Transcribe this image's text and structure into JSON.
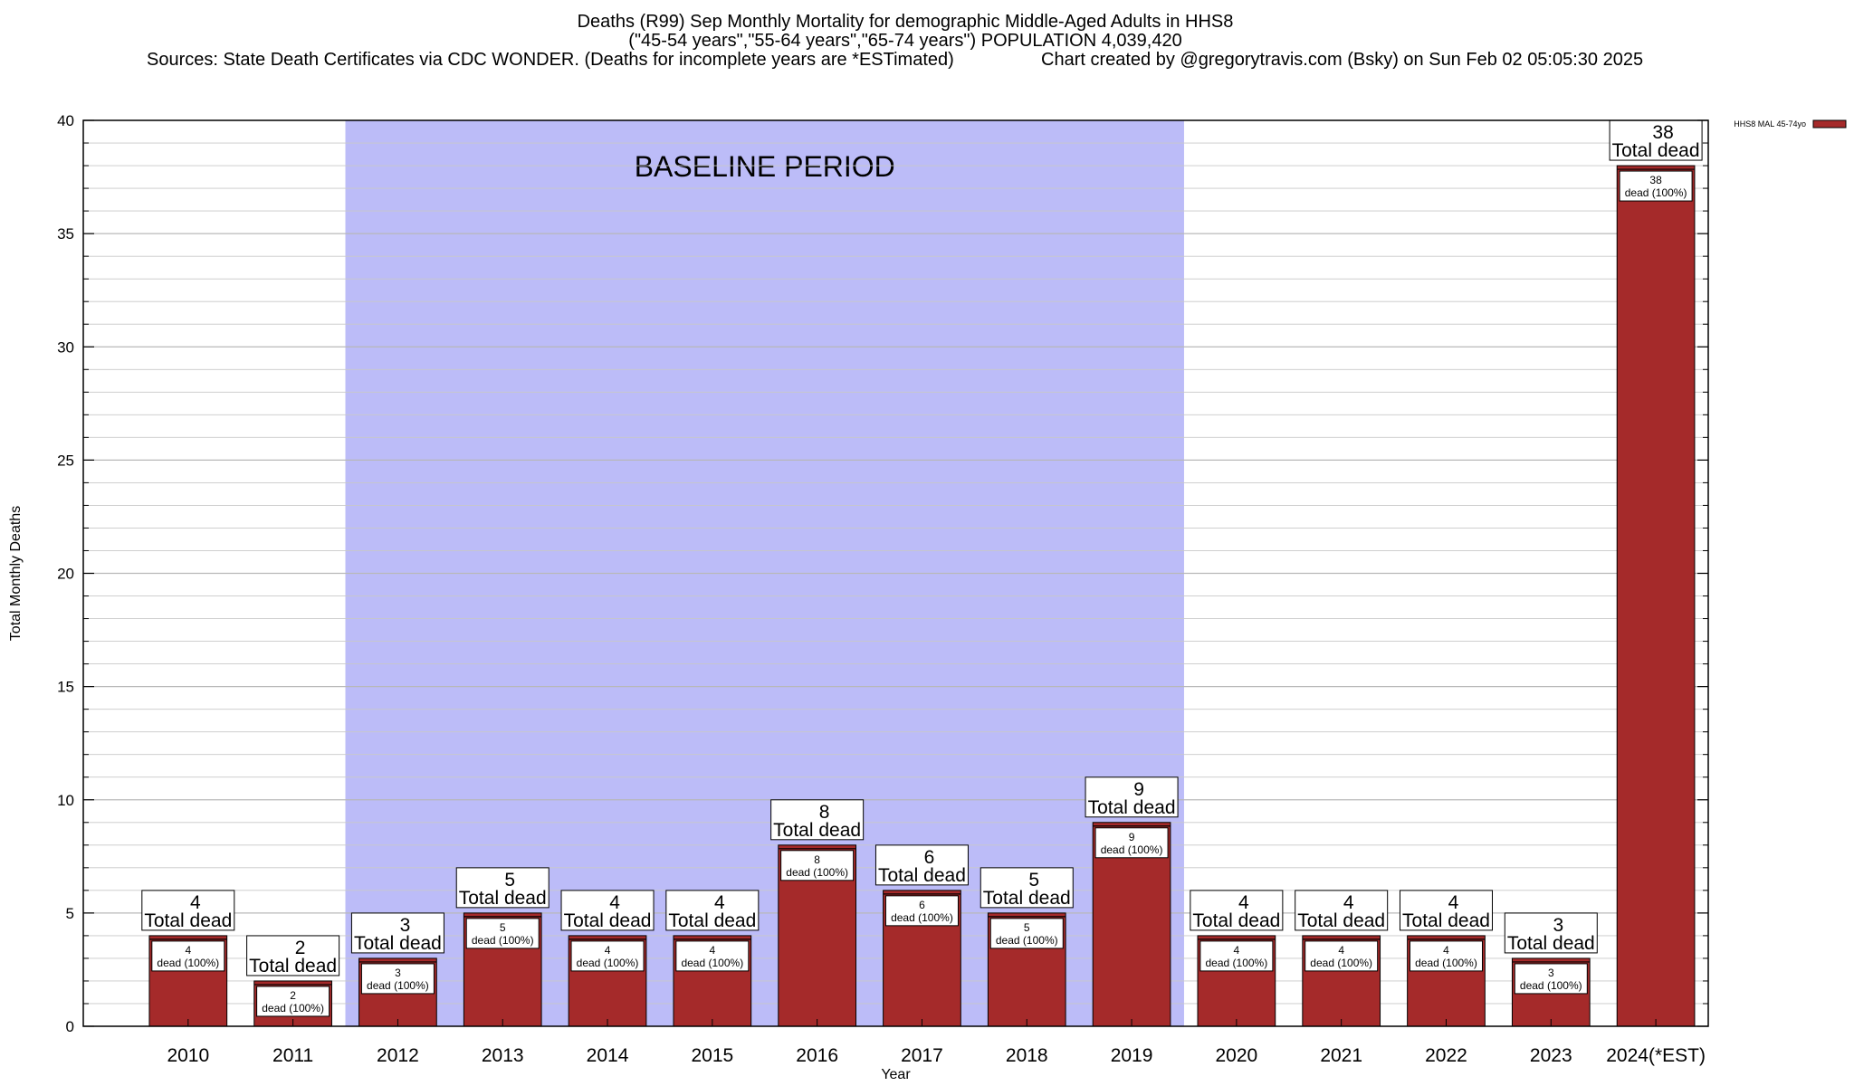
{
  "header": {
    "title_line1": "Deaths (R99) Sep Monthly Mortality for demographic Middle-Aged Adults in HHS8",
    "title_line2": "(\"45-54 years\",\"55-64 years\",\"65-74 years\") POPULATION 4,039,420",
    "sources": "Sources: State Death Certificates via CDC WONDER. (Deaths for incomplete years are *ESTimated)",
    "credit": "Chart created by @gregorytravis.com (Bsky) on Sun Feb 02 05:05:30 2025"
  },
  "colors": {
    "bar": "#a52a2a",
    "band": "#bcbcf8",
    "grid": "#c8c8c8",
    "frame": "#000000"
  },
  "chart_data": {
    "type": "bar",
    "xlabel": "Year",
    "ylabel": "Total Monthly Deaths",
    "ylim": [
      0,
      40
    ],
    "yticks": [
      0,
      5,
      10,
      15,
      20,
      25,
      30,
      35,
      40
    ],
    "minor_step": 1,
    "grid": true,
    "categories": [
      "2010",
      "2011",
      "2012",
      "2013",
      "2014",
      "2015",
      "2016",
      "2017",
      "2018",
      "2019",
      "2020",
      "2021",
      "2022",
      "2023",
      "2024(*EST)"
    ],
    "series": [
      {
        "name": "HHS8 MAL 45-74yo",
        "values": [
          4,
          2,
          3,
          5,
          4,
          4,
          8,
          6,
          5,
          9,
          4,
          4,
          4,
          3,
          38
        ],
        "percent_labels": [
          "100%",
          "100%",
          "100%",
          "100%",
          "100%",
          "100%",
          "100%",
          "100%",
          "100%",
          "100%",
          "100%",
          "100%",
          "100%",
          "100%",
          "100%"
        ]
      }
    ],
    "total_label_text": "Total dead",
    "inner_label_text": "dead",
    "baseline": {
      "label": "BASELINE PERIOD",
      "from": "2012",
      "to": "2019"
    },
    "legend": {
      "position": "top-right",
      "entries": [
        "HHS8 MAL 45-74yo"
      ]
    }
  }
}
